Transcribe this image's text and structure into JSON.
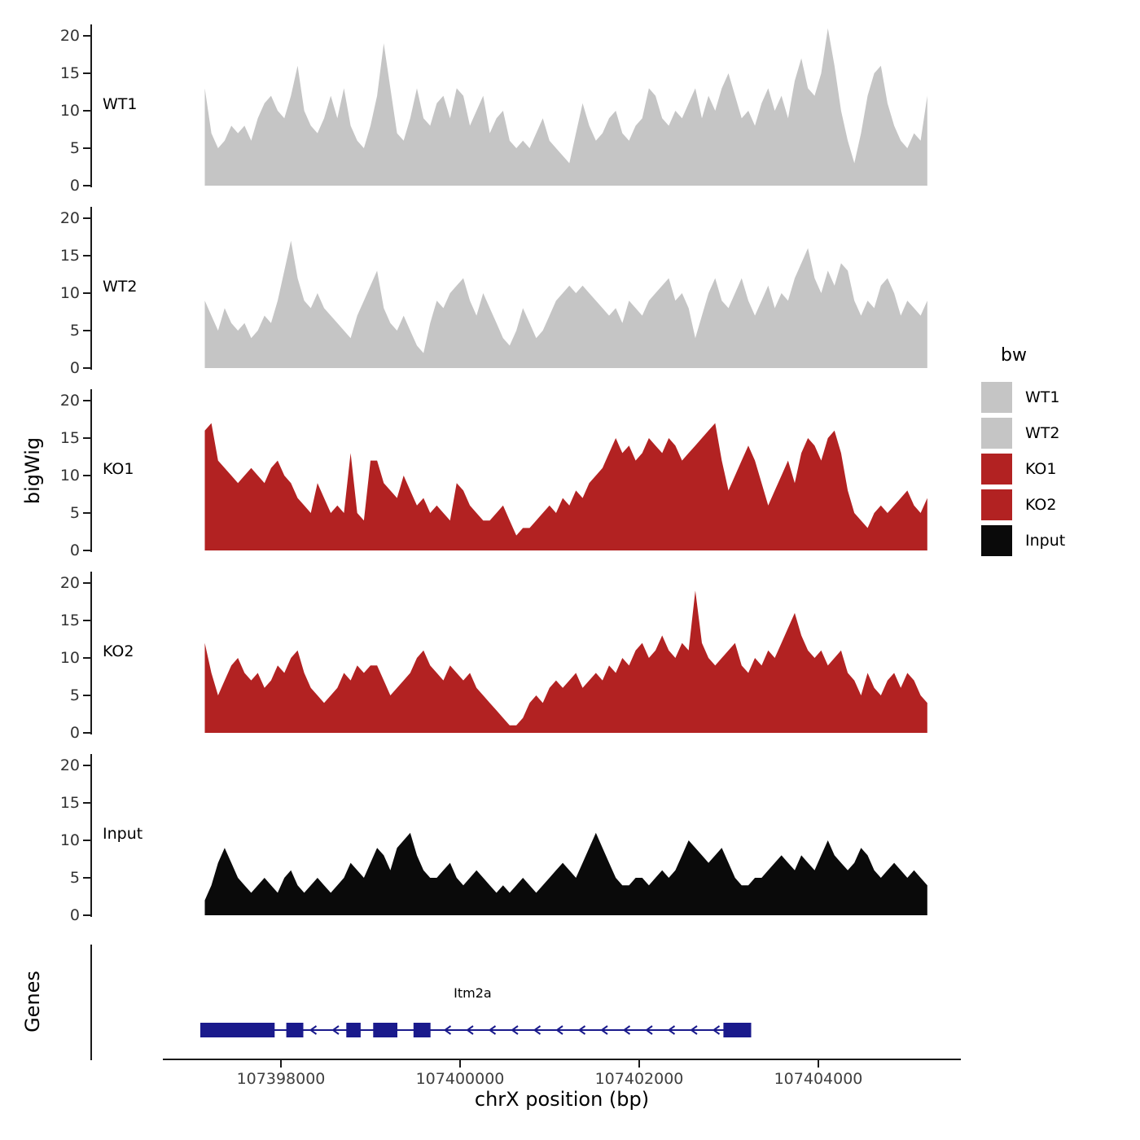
{
  "labels": {
    "y_title": "bigWig",
    "genes_title": "Genes",
    "x_title": "chrX position (bp)"
  },
  "legend": {
    "title": "bw",
    "items": [
      {
        "label": "WT1",
        "color": "#c5c5c5"
      },
      {
        "label": "WT2",
        "color": "#c5c5c5"
      },
      {
        "label": "KO1",
        "color": "#b22222"
      },
      {
        "label": "KO2",
        "color": "#b22222"
      },
      {
        "label": "Input",
        "color": "#0a0a0a"
      }
    ]
  },
  "chart_data": {
    "type": "area",
    "title": "",
    "xlabel": "chrX position (bp)",
    "ylabel": "bigWig",
    "xlim": [
      107395880,
      107405640
    ],
    "ylim": [
      0,
      21.5
    ],
    "y_ticks": [
      0,
      5,
      10,
      15,
      20
    ],
    "x_ticks": [
      107398000,
      107400000,
      107402000,
      107404000
    ],
    "x_tick_labels": [
      "107398000",
      "107400000",
      "107402000",
      "107404000"
    ],
    "x_start": 107397150,
    "x_step": 74,
    "grid": false,
    "legend_position": "right",
    "tracks": [
      {
        "name": "WT1",
        "color": "#c5c5c5",
        "values": [
          13,
          7,
          5,
          6,
          8,
          7,
          8,
          6,
          9,
          11,
          12,
          10,
          9,
          12,
          16,
          10,
          8,
          7,
          9,
          12,
          9,
          13,
          8,
          6,
          5,
          8,
          12,
          19,
          13,
          7,
          6,
          9,
          13,
          9,
          8,
          11,
          12,
          9,
          13,
          12,
          8,
          10,
          12,
          7,
          9,
          10,
          6,
          5,
          6,
          5,
          7,
          9,
          6,
          5,
          4,
          3,
          7,
          11,
          8,
          6,
          7,
          9,
          10,
          7,
          6,
          8,
          9,
          13,
          12,
          9,
          8,
          10,
          9,
          11,
          13,
          9,
          12,
          10,
          13,
          15,
          12,
          9,
          10,
          8,
          11,
          13,
          10,
          12,
          9,
          14,
          17,
          13,
          12,
          15,
          21,
          16,
          10,
          6,
          3,
          7,
          12,
          15,
          16,
          11,
          8,
          6,
          5,
          7,
          6,
          12
        ]
      },
      {
        "name": "WT2",
        "color": "#c5c5c5",
        "values": [
          9,
          7,
          5,
          8,
          6,
          5,
          6,
          4,
          5,
          7,
          6,
          9,
          13,
          17,
          12,
          9,
          8,
          10,
          8,
          7,
          6,
          5,
          4,
          7,
          9,
          11,
          13,
          8,
          6,
          5,
          7,
          5,
          3,
          2,
          6,
          9,
          8,
          10,
          11,
          12,
          9,
          7,
          10,
          8,
          6,
          4,
          3,
          5,
          8,
          6,
          4,
          5,
          7,
          9,
          10,
          11,
          10,
          11,
          10,
          9,
          8,
          7,
          8,
          6,
          9,
          8,
          7,
          9,
          10,
          11,
          12,
          9,
          10,
          8,
          4,
          7,
          10,
          12,
          9,
          8,
          10,
          12,
          9,
          7,
          9,
          11,
          8,
          10,
          9,
          12,
          14,
          16,
          12,
          10,
          13,
          11,
          14,
          13,
          9,
          7,
          9,
          8,
          11,
          12,
          10,
          7,
          9,
          8,
          7,
          9
        ]
      },
      {
        "name": "KO1",
        "color": "#b22222",
        "values": [
          16,
          17,
          12,
          11,
          10,
          9,
          10,
          11,
          10,
          9,
          11,
          12,
          10,
          9,
          7,
          6,
          5,
          9,
          7,
          5,
          6,
          5,
          13,
          5,
          4,
          12,
          12,
          9,
          8,
          7,
          10,
          8,
          6,
          7,
          5,
          6,
          5,
          4,
          9,
          8,
          6,
          5,
          4,
          4,
          5,
          6,
          4,
          2,
          3,
          3,
          4,
          5,
          6,
          5,
          7,
          6,
          8,
          7,
          9,
          10,
          11,
          13,
          15,
          13,
          14,
          12,
          13,
          15,
          14,
          13,
          15,
          14,
          12,
          13,
          14,
          15,
          16,
          17,
          12,
          8,
          10,
          12,
          14,
          12,
          9,
          6,
          8,
          10,
          12,
          9,
          13,
          15,
          14,
          12,
          15,
          16,
          13,
          8,
          5,
          4,
          3,
          5,
          6,
          5,
          6,
          7,
          8,
          6,
          5,
          7
        ]
      },
      {
        "name": "KO2",
        "color": "#b22222",
        "values": [
          12,
          8,
          5,
          7,
          9,
          10,
          8,
          7,
          8,
          6,
          7,
          9,
          8,
          10,
          11,
          8,
          6,
          5,
          4,
          5,
          6,
          8,
          7,
          9,
          8,
          9,
          9,
          7,
          5,
          6,
          7,
          8,
          10,
          11,
          9,
          8,
          7,
          9,
          8,
          7,
          8,
          6,
          5,
          4,
          3,
          2,
          1,
          1,
          2,
          4,
          5,
          4,
          6,
          7,
          6,
          7,
          8,
          6,
          7,
          8,
          7,
          9,
          8,
          10,
          9,
          11,
          12,
          10,
          11,
          13,
          11,
          10,
          12,
          11,
          19,
          12,
          10,
          9,
          10,
          11,
          12,
          9,
          8,
          10,
          9,
          11,
          10,
          12,
          14,
          16,
          13,
          11,
          10,
          11,
          9,
          10,
          11,
          8,
          7,
          5,
          8,
          6,
          5,
          7,
          8,
          6,
          8,
          7,
          5,
          4
        ]
      },
      {
        "name": "Input",
        "color": "#0a0a0a",
        "values": [
          2,
          4,
          7,
          9,
          7,
          5,
          4,
          3,
          4,
          5,
          4,
          3,
          5,
          6,
          4,
          3,
          4,
          5,
          4,
          3,
          4,
          5,
          7,
          6,
          5,
          7,
          9,
          8,
          6,
          9,
          10,
          11,
          8,
          6,
          5,
          5,
          6,
          7,
          5,
          4,
          5,
          6,
          5,
          4,
          3,
          4,
          3,
          4,
          5,
          4,
          3,
          4,
          5,
          6,
          7,
          6,
          5,
          7,
          9,
          11,
          9,
          7,
          5,
          4,
          4,
          5,
          5,
          4,
          5,
          6,
          5,
          6,
          8,
          10,
          9,
          8,
          7,
          8,
          9,
          7,
          5,
          4,
          4,
          5,
          5,
          6,
          7,
          8,
          7,
          6,
          8,
          7,
          6,
          8,
          10,
          8,
          7,
          6,
          7,
          9,
          8,
          6,
          5,
          6,
          7,
          6,
          5,
          6,
          5,
          4
        ]
      }
    ],
    "gene": {
      "name": "Itm2a",
      "strand": "-",
      "color": "#1a1a8c",
      "start": 107397100,
      "end": 107403250,
      "label_x": 107400140,
      "exons": [
        [
          107397100,
          107397930
        ],
        [
          107398060,
          107398250
        ],
        [
          107398730,
          107398890
        ],
        [
          107399030,
          107399300
        ],
        [
          107399480,
          107399670
        ],
        [
          107402940,
          107403250
        ]
      ]
    }
  }
}
